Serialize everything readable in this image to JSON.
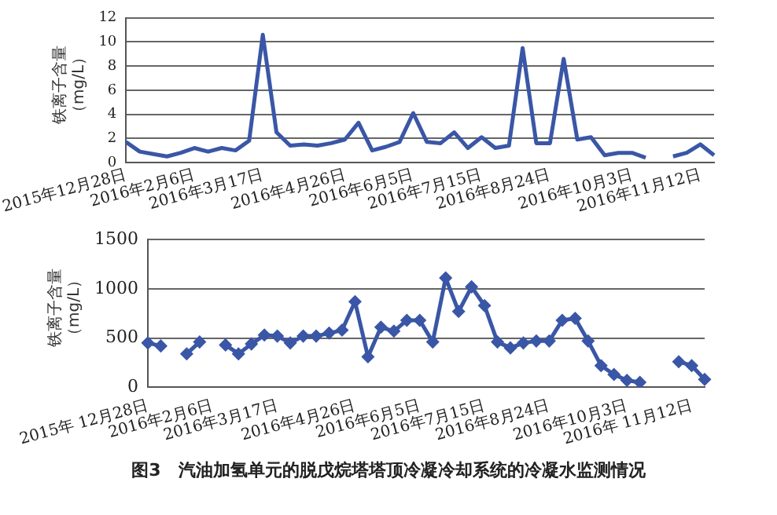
{
  "chart_data": [
    {
      "type": "line",
      "ylabel": "铁离子含量（mg/L）",
      "categories": [
        "2015年12月28日",
        null,
        null,
        null,
        null,
        "2016年2月6日",
        null,
        null,
        null,
        null,
        "2016年3月17日",
        null,
        null,
        null,
        null,
        null,
        "2016年4月26日",
        null,
        null,
        null,
        null,
        "2016年6月5日",
        null,
        null,
        null,
        null,
        "2016年7月15日",
        null,
        null,
        null,
        null,
        "2016年8月24日",
        null,
        null,
        null,
        null,
        null,
        "2016年10月3日",
        null,
        null,
        null,
        null,
        "2016年11月12日",
        null
      ],
      "series": [
        {
          "color": "#3a56a6",
          "values": [
            1.7,
            0.9,
            0.7,
            0.5,
            0.8,
            1.2,
            0.9,
            1.2,
            1.0,
            1.8,
            10.6,
            2.5,
            1.4,
            1.5,
            1.4,
            1.6,
            1.9,
            3.3,
            1.0,
            1.3,
            1.7,
            4.1,
            1.7,
            1.6,
            2.5,
            1.2,
            2.1,
            1.2,
            1.4,
            9.5,
            1.6,
            1.6,
            8.6,
            1.9,
            2.1,
            0.6,
            0.8,
            0.8,
            0.4,
            null,
            0.5,
            0.8,
            1.5,
            0.6
          ]
        }
      ],
      "ylim": [
        0,
        12
      ],
      "yticks": [
        0,
        2,
        4,
        6,
        8,
        10,
        12
      ],
      "grid": "y",
      "marker": "none",
      "legend": false
    },
    {
      "type": "line",
      "ylabel": "铁离子含量（mg/L）",
      "categories": [
        "2015年 12月28日",
        null,
        null,
        null,
        null,
        "2016年2月6日",
        null,
        null,
        null,
        null,
        "2016年3月17日",
        null,
        null,
        null,
        null,
        null,
        "2016年4月26日",
        null,
        null,
        null,
        null,
        "2016年6月5日",
        null,
        null,
        null,
        null,
        "2016年7月15日",
        null,
        null,
        null,
        null,
        "2016年8月24日",
        null,
        null,
        null,
        null,
        null,
        "2016年10月3日",
        null,
        null,
        null,
        null,
        "2016年 11月12日",
        null
      ],
      "series": [
        {
          "color": "#3a56a6",
          "values": [
            450,
            420,
            null,
            340,
            460,
            null,
            430,
            340,
            440,
            530,
            520,
            450,
            520,
            520,
            550,
            580,
            870,
            310,
            610,
            570,
            680,
            680,
            460,
            1110,
            770,
            1020,
            830,
            460,
            400,
            450,
            470,
            470,
            680,
            700,
            470,
            220,
            130,
            70,
            50,
            null,
            null,
            260,
            220,
            80
          ]
        }
      ],
      "ylim": [
        0,
        1500
      ],
      "yticks": [
        0,
        500,
        1000,
        1500
      ],
      "grid": "y",
      "marker": "diamond",
      "legend": false,
      "annotations": [
        "图3　汽油加氢单元的脱戊烷塔塔顶冷凝冷却系统的冷凝水监测情况"
      ]
    }
  ]
}
